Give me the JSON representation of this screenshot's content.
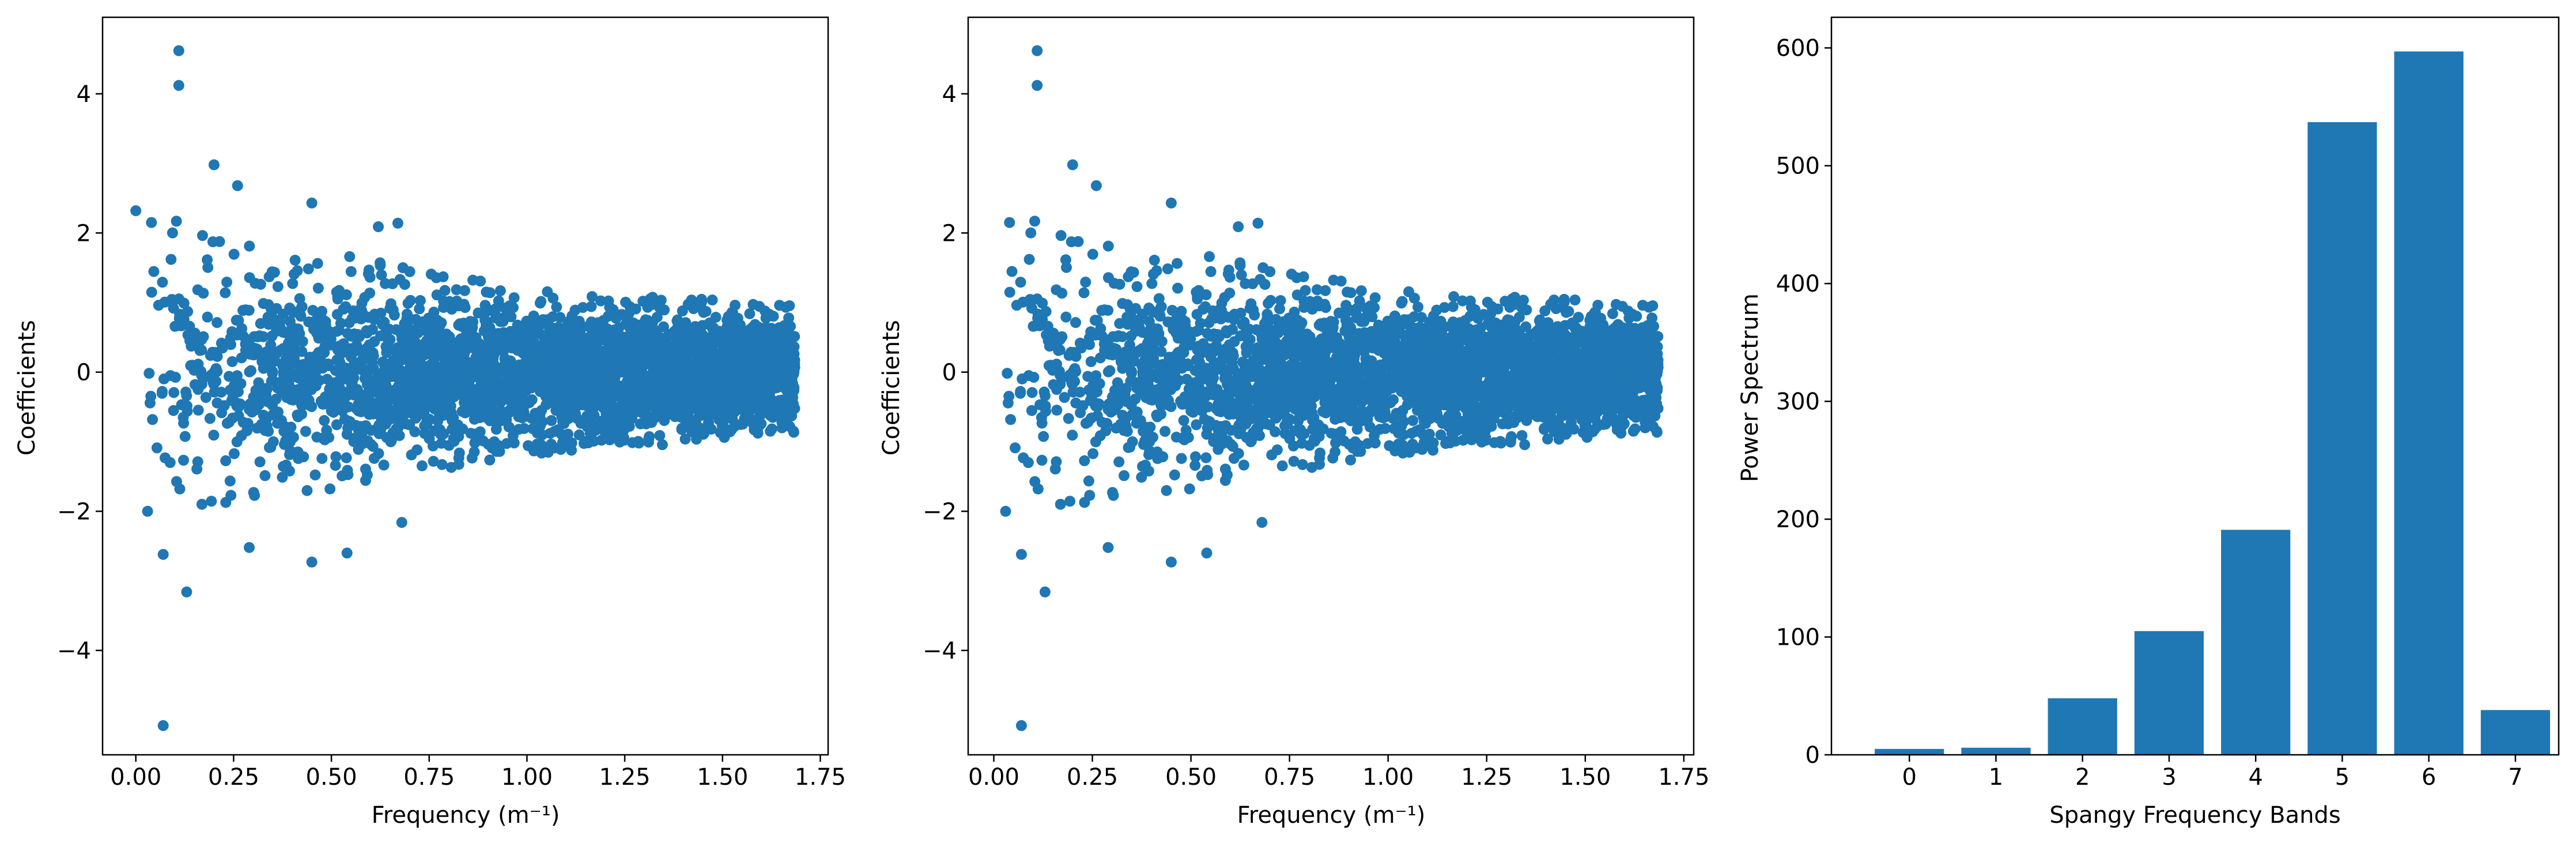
{
  "colors": {
    "series": "#1f77b4",
    "axes": "#000000",
    "background": "#ffffff"
  },
  "chart_data": [
    {
      "type": "scatter",
      "xlabel": "Frequency (m⁻¹)",
      "ylabel": "Coefficients",
      "xlim": [
        -0.085,
        1.77
      ],
      "ylim": [
        -5.5,
        5.1
      ],
      "xticks": [
        0.0,
        0.25,
        0.5,
        0.75,
        1.0,
        1.25,
        1.5,
        1.75
      ],
      "xtick_labels": [
        "0.00",
        "0.25",
        "0.50",
        "0.75",
        "1.00",
        "1.25",
        "1.50",
        "1.75"
      ],
      "yticks": [
        -4,
        -2,
        0,
        2,
        4
      ],
      "ytick_labels": [
        "−4",
        "−2",
        "0",
        "2",
        "4"
      ],
      "grid": false,
      "points_description": "dense cloud of ~3000 coefficients vs frequency 0–1.69; spread narrows with frequency",
      "outliers": [
        [
          0.0,
          2.32
        ],
        [
          0.03,
          -2.0
        ],
        [
          0.04,
          2.15
        ],
        [
          0.07,
          -2.62
        ],
        [
          0.07,
          -5.08
        ],
        [
          0.09,
          1.62
        ],
        [
          0.11,
          4.62
        ],
        [
          0.11,
          4.12
        ],
        [
          0.13,
          -3.16
        ],
        [
          0.2,
          2.98
        ],
        [
          0.26,
          2.68
        ],
        [
          0.29,
          -2.52
        ],
        [
          0.45,
          -2.73
        ],
        [
          0.45,
          2.43
        ],
        [
          0.54,
          -2.6
        ],
        [
          0.62,
          2.09
        ],
        [
          0.67,
          2.14
        ],
        [
          0.68,
          -2.16
        ]
      ],
      "envelope": [
        [
          0.05,
          2.0
        ],
        [
          0.25,
          1.6
        ],
        [
          0.5,
          1.5
        ],
        [
          0.75,
          1.25
        ],
        [
          1.0,
          1.05
        ],
        [
          1.25,
          0.95
        ],
        [
          1.5,
          0.9
        ],
        [
          1.68,
          0.85
        ]
      ]
    },
    {
      "type": "scatter",
      "xlabel": "Frequency (m⁻¹)",
      "ylabel": "Coefficients",
      "xlim": [
        -0.065,
        1.775
      ],
      "ylim": [
        -5.5,
        5.1
      ],
      "xticks": [
        0.0,
        0.25,
        0.5,
        0.75,
        1.0,
        1.25,
        1.5,
        1.75
      ],
      "xtick_labels": [
        "0.00",
        "0.25",
        "0.50",
        "0.75",
        "1.00",
        "1.25",
        "1.50",
        "1.75"
      ],
      "yticks": [
        -4,
        -2,
        0,
        2,
        4
      ],
      "ytick_labels": [
        "−4",
        "−2",
        "0",
        "2",
        "4"
      ],
      "grid": false,
      "points_description": "same coefficients as left panel with the zero-frequency term removed",
      "outliers": [
        [
          0.03,
          -2.0
        ],
        [
          0.04,
          2.15
        ],
        [
          0.07,
          -2.62
        ],
        [
          0.07,
          -5.08
        ],
        [
          0.09,
          1.62
        ],
        [
          0.11,
          4.62
        ],
        [
          0.11,
          4.12
        ],
        [
          0.13,
          -3.16
        ],
        [
          0.2,
          2.98
        ],
        [
          0.26,
          2.68
        ],
        [
          0.29,
          -2.52
        ],
        [
          0.45,
          -2.73
        ],
        [
          0.45,
          2.43
        ],
        [
          0.54,
          -2.6
        ],
        [
          0.62,
          2.09
        ],
        [
          0.67,
          2.14
        ],
        [
          0.68,
          -2.16
        ]
      ],
      "envelope": [
        [
          0.05,
          2.0
        ],
        [
          0.25,
          1.6
        ],
        [
          0.5,
          1.5
        ],
        [
          0.75,
          1.25
        ],
        [
          1.0,
          1.05
        ],
        [
          1.25,
          0.95
        ],
        [
          1.5,
          0.9
        ],
        [
          1.68,
          0.85
        ]
      ]
    },
    {
      "type": "bar",
      "xlabel": "Spangy Frequency Bands",
      "ylabel": "Power Spectrum",
      "categories": [
        "0",
        "1",
        "2",
        "3",
        "4",
        "5",
        "6",
        "7"
      ],
      "values": [
        5,
        6,
        48,
        105,
        191,
        537,
        597,
        38
      ],
      "xlim": [
        -0.9,
        7.5
      ],
      "ylim": [
        0,
        626
      ],
      "yticks": [
        0,
        100,
        200,
        300,
        400,
        500,
        600
      ],
      "ytick_labels": [
        "0",
        "100",
        "200",
        "300",
        "400",
        "500",
        "600"
      ],
      "grid": false
    }
  ]
}
